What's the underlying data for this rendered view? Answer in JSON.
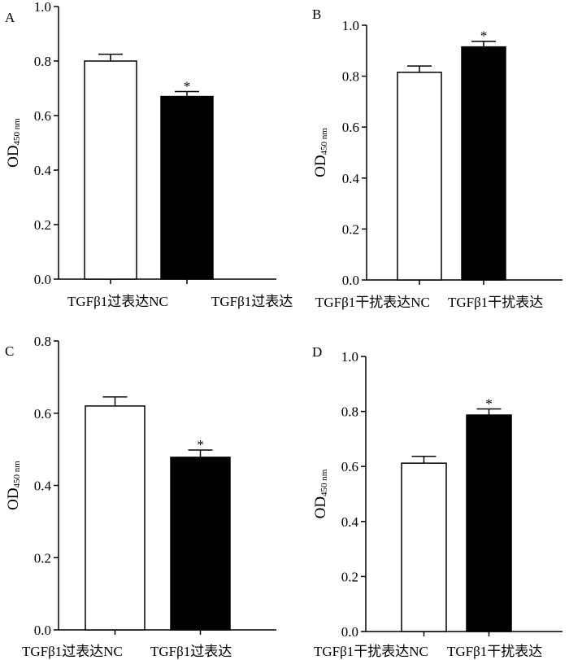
{
  "colors": {
    "axis": "#000000",
    "bar_outline": "#000000",
    "fill_nc": "#ffffff",
    "fill_treated": "#000000"
  },
  "chart_data": [
    {
      "type": "bar",
      "panel_label": "A",
      "ylabel": {
        "main": "OD",
        "sub": "450 nm"
      },
      "ylim": [
        0,
        1.0
      ],
      "yticks": [
        "0.0",
        "0.2",
        "0.4",
        "0.6",
        "0.8",
        "1.0"
      ],
      "categories": [
        "TGFβ1过表达NC",
        "TGFβ1过表达"
      ],
      "values": [
        0.8,
        0.67
      ],
      "errors": [
        0.025,
        0.018
      ],
      "fills": [
        "white",
        "black"
      ],
      "significance": [
        "",
        "*"
      ]
    },
    {
      "type": "bar",
      "panel_label": "B",
      "ylabel": {
        "main": "OD",
        "sub": "450 nm"
      },
      "ylim": [
        0,
        1.0
      ],
      "yticks": [
        "0.0",
        "0.2",
        "0.4",
        "0.6",
        "0.8",
        "1.0"
      ],
      "categories": [
        "TGFβ1干扰表达NC",
        "TGFβ1干扰表达"
      ],
      "values": [
        0.815,
        0.915
      ],
      "errors": [
        0.025,
        0.022
      ],
      "fills": [
        "white",
        "black"
      ],
      "significance": [
        "",
        "*"
      ]
    },
    {
      "type": "bar",
      "panel_label": "C",
      "ylabel": {
        "main": "OD",
        "sub": "450 nm"
      },
      "ylim": [
        0,
        0.8
      ],
      "yticks": [
        "0.0",
        "0.2",
        "0.4",
        "0.6",
        "0.8"
      ],
      "categories": [
        "TGFβ1过表达NC",
        "TGFβ1过表达"
      ],
      "values": [
        0.62,
        0.478
      ],
      "errors": [
        0.025,
        0.02
      ],
      "fills": [
        "white",
        "black"
      ],
      "significance": [
        "",
        "*"
      ]
    },
    {
      "type": "bar",
      "panel_label": "D",
      "ylabel": {
        "main": "OD",
        "sub": "450 nm"
      },
      "ylim": [
        0,
        1.0
      ],
      "yticks": [
        "0.0",
        "0.2",
        "0.4",
        "0.6",
        "0.8",
        "1.0"
      ],
      "categories": [
        "TGFβ1干扰表达NC",
        "TGFβ1干扰表达"
      ],
      "values": [
        0.612,
        0.787
      ],
      "errors": [
        0.025,
        0.022
      ],
      "fills": [
        "white",
        "black"
      ],
      "significance": [
        "",
        "*"
      ]
    }
  ]
}
